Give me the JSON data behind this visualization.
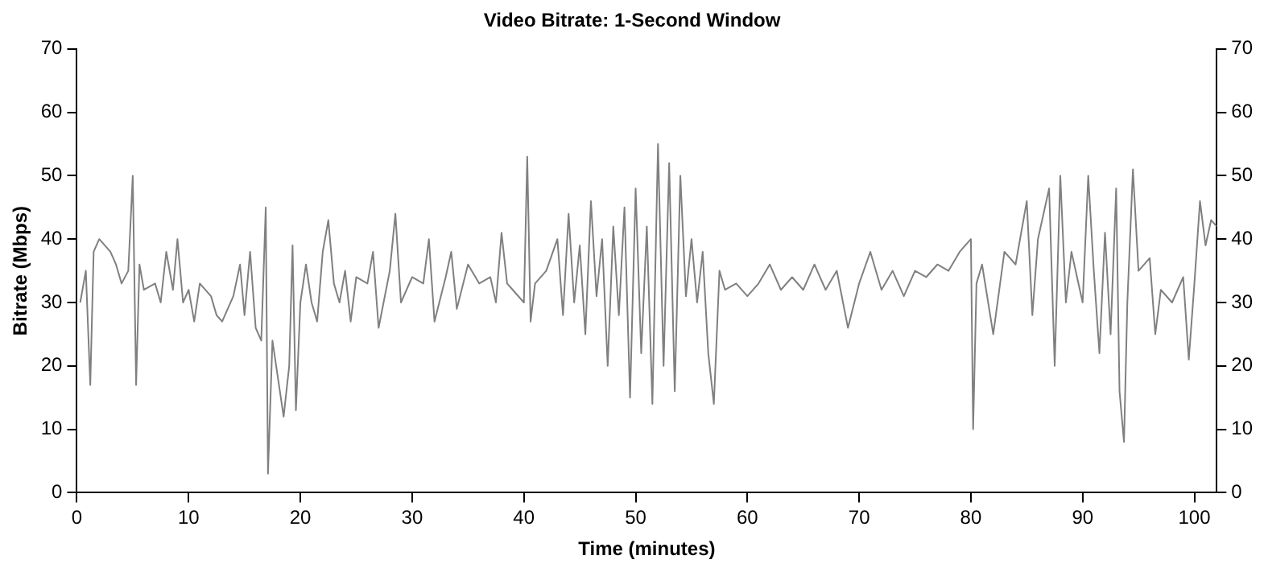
{
  "chart_data": {
    "type": "line",
    "title": "Video Bitrate: 1-Second Window",
    "xlabel": "Time (minutes)",
    "ylabel": "Bitrate (Mbps)",
    "x": [
      0.3,
      0.8,
      1.2,
      1.5,
      2,
      3,
      3.5,
      4,
      4.6,
      5,
      5.3,
      5.6,
      6,
      7,
      7.5,
      8,
      8.6,
      9,
      9.5,
      10,
      10.5,
      11,
      12,
      12.5,
      13,
      14,
      14.6,
      15,
      15.5,
      16,
      16.5,
      16.9,
      17.1,
      17.5,
      18,
      18.5,
      19,
      19.3,
      19.6,
      20,
      20.5,
      21,
      21.5,
      22,
      22.5,
      23,
      23.5,
      24,
      24.5,
      25,
      26,
      26.5,
      27,
      28,
      28.5,
      29,
      30,
      31,
      31.5,
      32,
      33,
      33.5,
      34,
      35,
      36,
      37,
      37.5,
      38,
      38.5,
      39,
      40,
      40.3,
      40.6,
      41,
      42,
      43,
      43.5,
      44,
      44.5,
      45,
      45.5,
      46,
      46.5,
      47,
      47.5,
      48,
      48.5,
      49,
      49.5,
      50,
      50.5,
      51,
      51.5,
      52,
      52.5,
      53,
      53.5,
      54,
      54.5,
      55,
      55.5,
      56,
      56.5,
      57,
      57.5,
      58,
      59,
      60,
      61,
      62,
      63,
      64,
      65,
      66,
      67,
      68,
      69,
      70,
      71,
      72,
      73,
      74,
      75,
      76,
      77,
      78,
      79,
      80,
      80.2,
      80.5,
      81,
      82,
      83,
      84,
      85,
      85.5,
      86,
      87,
      87.5,
      88,
      88.5,
      89,
      90,
      90.5,
      91,
      91.5,
      92,
      92.5,
      93,
      93.3,
      93.7,
      94,
      94.5,
      95,
      96,
      96.5,
      97,
      98,
      99,
      99.5,
      100,
      100.5,
      101,
      101.5,
      102
    ],
    "series": [
      {
        "color": "#808080",
        "values": [
          30,
          35,
          17,
          38,
          40,
          38,
          36,
          33,
          35,
          50,
          17,
          36,
          32,
          33,
          30,
          38,
          32,
          40,
          30,
          32,
          27,
          33,
          31,
          28,
          27,
          31,
          36,
          28,
          38,
          26,
          24,
          45,
          3,
          24,
          18,
          12,
          20,
          39,
          13,
          30,
          36,
          30,
          27,
          38,
          43,
          33,
          30,
          35,
          27,
          34,
          33,
          38,
          26,
          35,
          44,
          30,
          34,
          33,
          40,
          27,
          34,
          38,
          29,
          36,
          33,
          34,
          30,
          41,
          33,
          32,
          30,
          53,
          27,
          33,
          35,
          40,
          28,
          44,
          30,
          39,
          25,
          46,
          31,
          40,
          20,
          42,
          28,
          45,
          15,
          48,
          22,
          42,
          14,
          55,
          20,
          52,
          16,
          50,
          31,
          40,
          30,
          38,
          22,
          14,
          35,
          32,
          33,
          31,
          33,
          36,
          32,
          34,
          32,
          36,
          32,
          35,
          26,
          33,
          38,
          32,
          35,
          31,
          35,
          34,
          36,
          35,
          38,
          40,
          10,
          33,
          36,
          25,
          38,
          36,
          46,
          28,
          40,
          48,
          20,
          50,
          30,
          38,
          30,
          50,
          35,
          22,
          41,
          25,
          48,
          16,
          8,
          30,
          51,
          35,
          37,
          25,
          32,
          30,
          34,
          21,
          33,
          46,
          39,
          43,
          42
        ]
      }
    ],
    "xlim": [
      0,
      102
    ],
    "xticks": [
      0,
      10,
      20,
      30,
      40,
      50,
      60,
      70,
      80,
      90,
      100
    ],
    "ylim": [
      0,
      70
    ],
    "yticks": [
      0,
      10,
      20,
      30,
      40,
      50,
      60,
      70
    ],
    "y2lim": [
      0,
      70
    ],
    "y2ticks": [
      0,
      10,
      20,
      30,
      40,
      50,
      60,
      70
    ],
    "grid": false,
    "legend": false,
    "marker": "none",
    "line_style": "solid"
  }
}
